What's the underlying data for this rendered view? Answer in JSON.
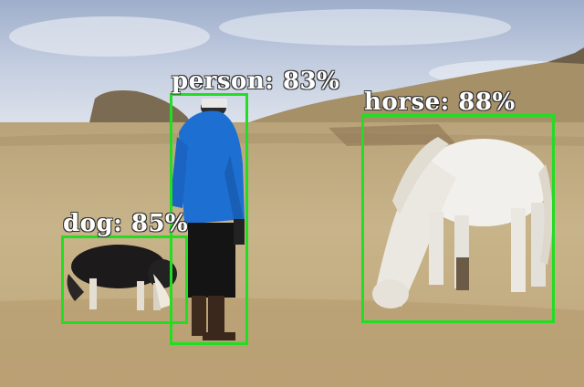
{
  "detections": [
    {
      "label": "person: 83%",
      "object": "person",
      "confidence": 0.83,
      "color": "#22dd22"
    },
    {
      "label": "horse: 88%",
      "object": "horse",
      "confidence": 0.88,
      "color": "#22dd22"
    },
    {
      "label": "dog: 85%",
      "object": "dog",
      "confidence": 0.85,
      "color": "#22dd22"
    }
  ],
  "colors": {
    "sky": "#c4cfe0",
    "field": "#c9b488",
    "box": "#22dd22"
  }
}
